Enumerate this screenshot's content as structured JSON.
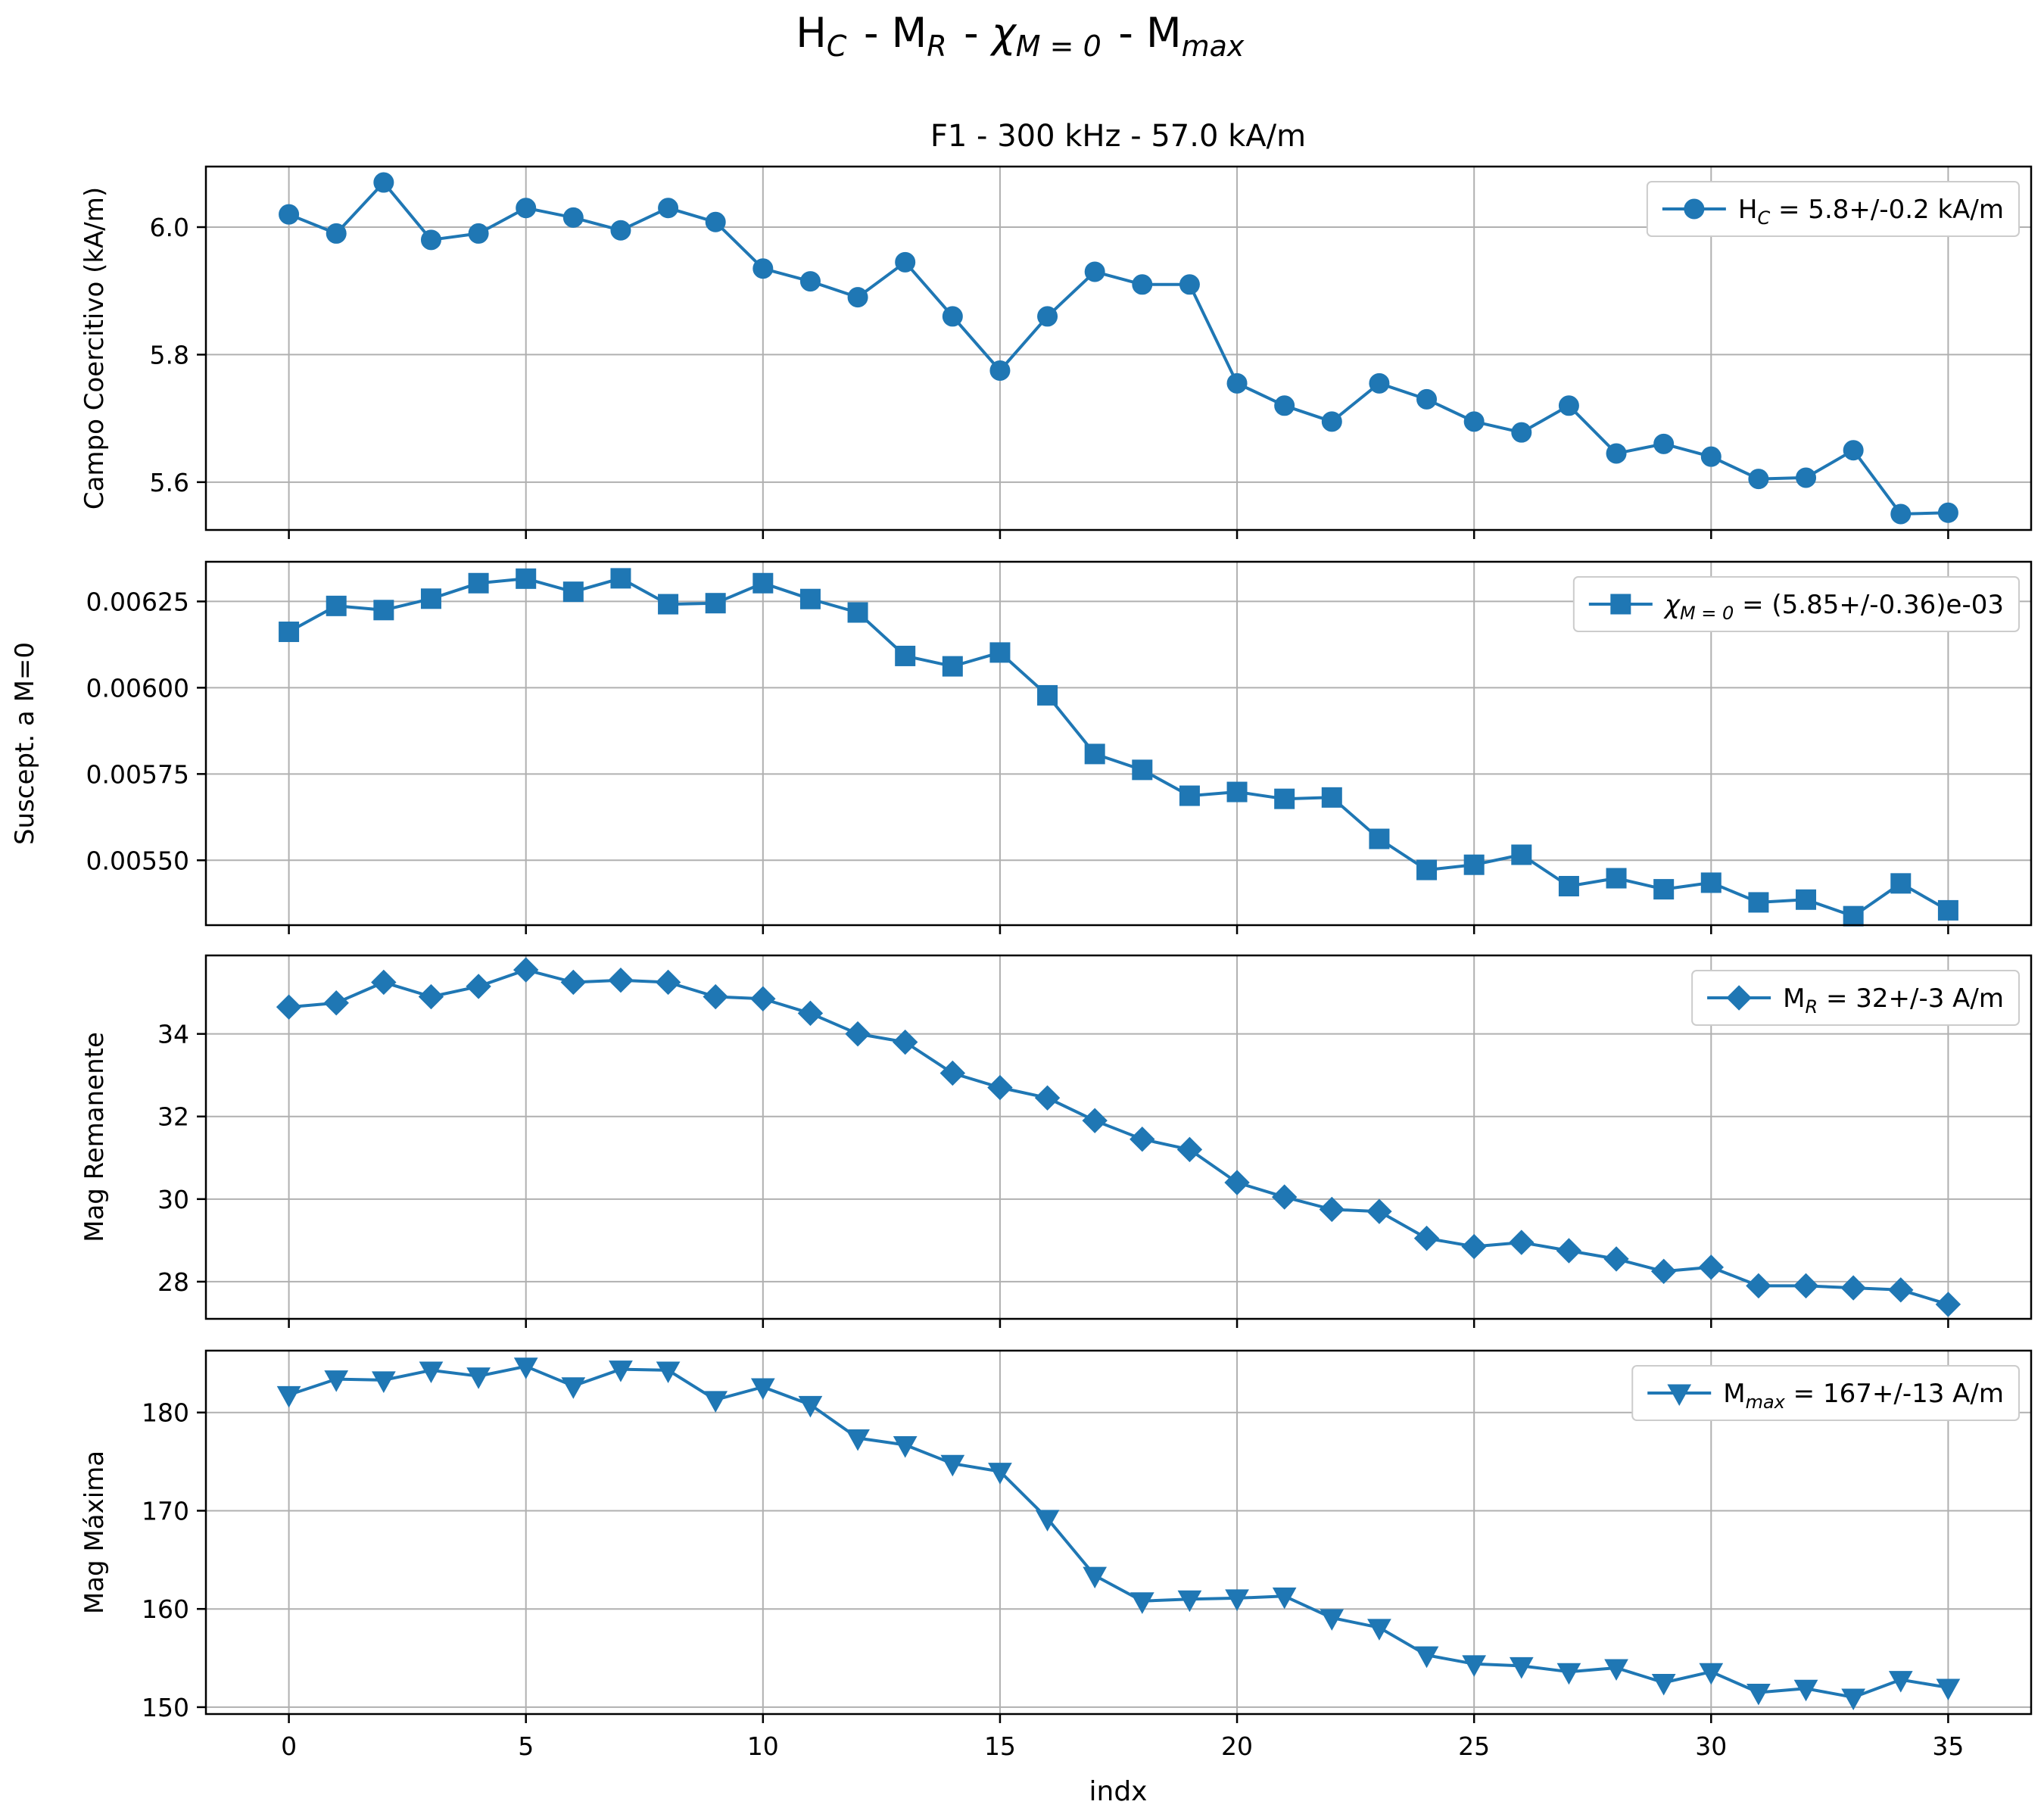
{
  "figure": {
    "suptitle": {
      "main": "H",
      "parts": [
        {
          "t": "H",
          "sub": "C"
        },
        {
          "t": " - M",
          "sub": "R"
        },
        {
          "t": " - ",
          "chi": true,
          "sub": "M = 0"
        },
        {
          "t": " - M",
          "sub": "max"
        }
      ]
    },
    "subtitle": "F1 - 300 kHz - 57.0 kA/m",
    "xlabel": "indx",
    "line_color": "#1f77b4"
  },
  "chart_data": [
    {
      "type": "line",
      "marker": "circle",
      "ylabel": "Campo Coercitivo (kA/m)",
      "legend": {
        "main": "H",
        "sub": "C",
        "rest": " = 5.8+/-0.2 kA/m"
      },
      "legend_placement": "upper right",
      "grid": true,
      "xlim": [
        -1.75,
        36.75
      ],
      "ylim": [
        5.525,
        6.095
      ],
      "xticks": [
        0,
        5,
        10,
        15,
        20,
        25,
        30,
        35
      ],
      "yticks": [
        5.6,
        5.8,
        6.0
      ],
      "ytick_labels": [
        "5.6",
        "5.8",
        "6.0"
      ],
      "x": [
        0,
        1,
        2,
        3,
        4,
        5,
        6,
        7,
        8,
        9,
        10,
        11,
        12,
        13,
        14,
        15,
        16,
        17,
        18,
        19,
        20,
        21,
        22,
        23,
        24,
        25,
        26,
        27,
        28,
        29,
        30,
        31,
        32,
        33,
        34,
        35
      ],
      "values": [
        6.02,
        5.99,
        6.07,
        5.98,
        5.99,
        6.03,
        6.015,
        5.995,
        6.03,
        6.008,
        5.935,
        5.915,
        5.89,
        5.945,
        5.86,
        5.775,
        5.86,
        5.93,
        5.91,
        5.91,
        5.755,
        5.72,
        5.695,
        5.755,
        5.73,
        5.695,
        5.678,
        5.72,
        5.645,
        5.66,
        5.64,
        5.605,
        5.607,
        5.65,
        5.55,
        5.552
      ]
    },
    {
      "type": "line",
      "marker": "square",
      "ylabel": "Suscept. a M=0",
      "legend": {
        "chi": true,
        "sub": "M = 0",
        "rest": " = (5.85+/-0.36)e-03"
      },
      "legend_placement": "upper right",
      "grid": true,
      "xlim": [
        -1.75,
        36.75
      ],
      "ylim": [
        0.005312,
        0.006365
      ],
      "xticks": [
        0,
        5,
        10,
        15,
        20,
        25,
        30,
        35
      ],
      "yticks": [
        0.0055,
        0.00575,
        0.006,
        0.00625
      ],
      "ytick_labels": [
        "0.00550",
        "0.00575",
        "0.00600",
        "0.00625"
      ],
      "x": [
        0,
        1,
        2,
        3,
        4,
        5,
        6,
        7,
        8,
        9,
        10,
        11,
        12,
        13,
        14,
        15,
        16,
        17,
        18,
        19,
        20,
        21,
        22,
        23,
        24,
        25,
        26,
        27,
        28,
        29,
        30,
        31,
        32,
        33,
        34,
        35
      ],
      "values": [
        0.006162,
        0.006237,
        0.006225,
        0.006258,
        0.006303,
        0.006316,
        0.006278,
        0.006317,
        0.006242,
        0.006245,
        0.006303,
        0.006257,
        0.006218,
        0.006092,
        0.006062,
        0.006102,
        0.005978,
        0.005808,
        0.005762,
        0.005687,
        0.005698,
        0.005678,
        0.005682,
        0.005562,
        0.005472,
        0.005487,
        0.005516,
        0.005425,
        0.005448,
        0.005416,
        0.005435,
        0.005378,
        0.005386,
        0.005338,
        0.005433,
        0.005355
      ]
    },
    {
      "type": "line",
      "marker": "diamond",
      "ylabel": "Mag Remanente",
      "legend": {
        "main": "M",
        "sub": "R",
        "rest": " = 32+/-3 A/m"
      },
      "legend_placement": "upper right",
      "grid": true,
      "xlim": [
        -1.75,
        36.75
      ],
      "ylim": [
        27.1,
        35.9
      ],
      "xticks": [
        0,
        5,
        10,
        15,
        20,
        25,
        30,
        35
      ],
      "yticks": [
        28,
        30,
        32,
        34
      ],
      "ytick_labels": [
        "28",
        "30",
        "32",
        "34"
      ],
      "x": [
        0,
        1,
        2,
        3,
        4,
        5,
        6,
        7,
        8,
        9,
        10,
        11,
        12,
        13,
        14,
        15,
        16,
        17,
        18,
        19,
        20,
        21,
        22,
        23,
        24,
        25,
        26,
        27,
        28,
        29,
        30,
        31,
        32,
        33,
        34,
        35
      ],
      "values": [
        34.65,
        34.75,
        35.25,
        34.9,
        35.15,
        35.55,
        35.25,
        35.3,
        35.25,
        34.9,
        34.85,
        34.5,
        34.0,
        33.8,
        33.05,
        32.7,
        32.45,
        31.9,
        31.45,
        31.2,
        30.4,
        30.05,
        29.75,
        29.7,
        29.05,
        28.85,
        28.95,
        28.75,
        28.55,
        28.25,
        28.35,
        27.9,
        27.9,
        27.85,
        27.8,
        27.45
      ]
    },
    {
      "type": "line",
      "marker": "triangle_down",
      "ylabel": "Mag Máxima",
      "legend": {
        "main": "M",
        "sub": "max",
        "rest": " = 167+/-13 A/m"
      },
      "legend_placement": "upper right",
      "grid": true,
      "xlim": [
        -1.75,
        36.75
      ],
      "ylim": [
        149.3,
        186.3
      ],
      "xticks": [
        0,
        5,
        10,
        15,
        20,
        25,
        30,
        35
      ],
      "yticks": [
        150,
        160,
        170,
        180
      ],
      "ytick_labels": [
        "150",
        "160",
        "170",
        "180"
      ],
      "x": [
        0,
        1,
        2,
        3,
        4,
        5,
        6,
        7,
        8,
        9,
        10,
        11,
        12,
        13,
        14,
        15,
        16,
        17,
        18,
        19,
        20,
        21,
        22,
        23,
        24,
        25,
        26,
        27,
        28,
        29,
        30,
        31,
        32,
        33,
        34,
        35
      ],
      "values": [
        181.8,
        183.4,
        183.3,
        184.3,
        183.7,
        184.7,
        182.7,
        184.4,
        184.3,
        181.3,
        182.6,
        180.8,
        177.4,
        176.7,
        174.8,
        174.0,
        169.2,
        163.4,
        160.8,
        161.0,
        161.1,
        161.3,
        159.1,
        158.1,
        155.3,
        154.4,
        154.2,
        153.6,
        154.0,
        152.5,
        153.6,
        151.5,
        151.9,
        151.0,
        152.8,
        152.0
      ]
    }
  ],
  "x_tick_labels": [
    "0",
    "5",
    "10",
    "15",
    "20",
    "25",
    "30",
    "35"
  ]
}
